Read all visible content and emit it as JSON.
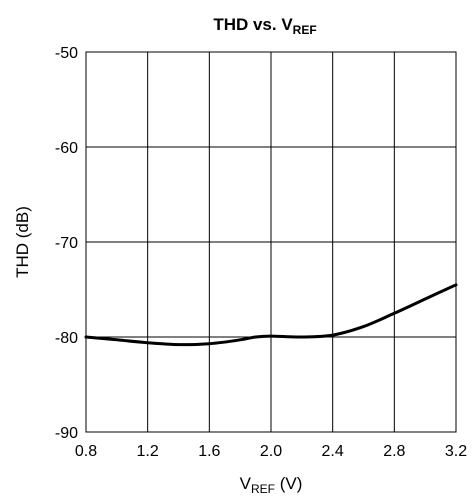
{
  "chart_data": {
    "type": "line",
    "title": {
      "main": "THD vs. V",
      "sub": "REF"
    },
    "xlabel": {
      "main": "V",
      "sub": "REF",
      "unit": " (V)"
    },
    "ylabel": "THD (dB)",
    "xlim": [
      0.8,
      3.2
    ],
    "ylim": [
      -90,
      -50
    ],
    "x_ticks": [
      "0.8",
      "1.2",
      "1.6",
      "2.0",
      "2.4",
      "2.8",
      "3.2"
    ],
    "y_ticks": [
      "-50",
      "-60",
      "-70",
      "-80",
      "-90"
    ],
    "grid": true,
    "legend": "none",
    "series": [
      {
        "color": "#000000",
        "x": [
          0.8,
          1.0,
          1.2,
          1.4,
          1.6,
          1.8,
          1.9,
          2.0,
          2.2,
          2.4,
          2.6,
          2.8,
          3.0,
          3.2
        ],
        "y": [
          -80.0,
          -80.3,
          -80.6,
          -80.8,
          -80.7,
          -80.3,
          -80.0,
          -79.9,
          -80.0,
          -79.8,
          -78.9,
          -77.5,
          -76.0,
          -74.5
        ]
      }
    ]
  }
}
